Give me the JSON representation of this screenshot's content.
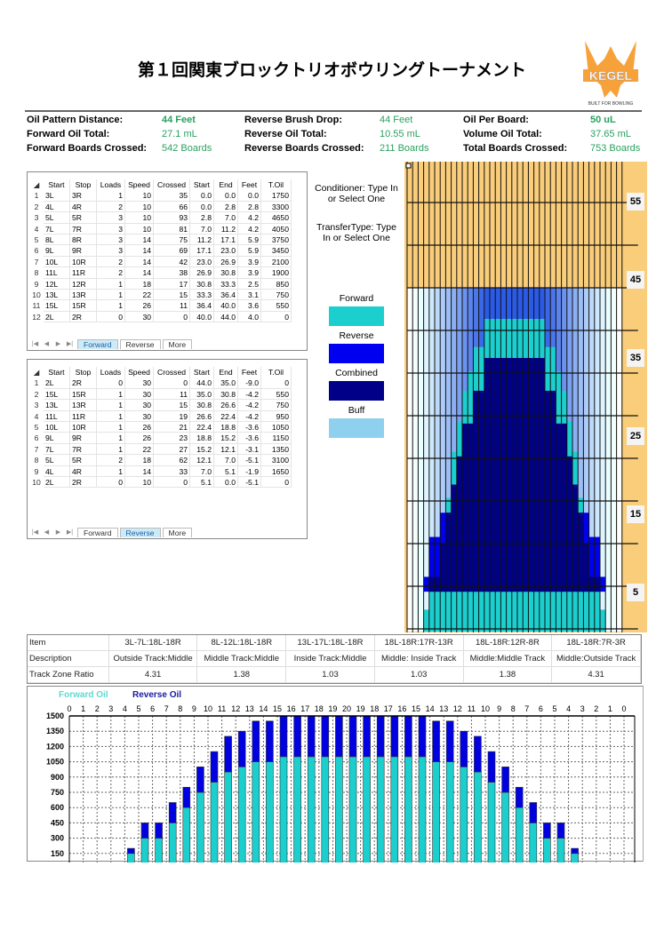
{
  "title": "第１回関東ブロックトリオボウリングトーナメント",
  "logo": {
    "brand": "KEGEL",
    "tagline": "BUILT FOR BOWLING",
    "color": "#f7a13a"
  },
  "summary": [
    {
      "label": "Oil Pattern Distance:",
      "value": "44 Feet",
      "bold": true
    },
    {
      "label": "Forward Oil Total:",
      "value": "27.1 mL"
    },
    {
      "label": "Forward Boards Crossed:",
      "value": "542 Boards"
    },
    {
      "label": "Reverse Brush Drop:",
      "value": "44 Feet"
    },
    {
      "label": "Reverse Oil Total:",
      "value": "10.55 mL"
    },
    {
      "label": "Reverse Boards Crossed:",
      "value": "211 Boards"
    },
    {
      "label": "Oil Per Board:",
      "value": "50 uL",
      "bold": true
    },
    {
      "label": "Volume Oil Total:",
      "value": "37.65 mL"
    },
    {
      "label": "Total Boards Crossed:",
      "value": "753 Boards"
    }
  ],
  "columns": [
    "Start",
    "Stop",
    "Loads",
    "Speed",
    "Crossed",
    "Start",
    "End",
    "Feet",
    "T.Oil"
  ],
  "sheet_tabs": [
    "Forward",
    "Reverse",
    "More"
  ],
  "forward": [
    [
      "3L",
      "3R",
      "1",
      "10",
      "35",
      "0.0",
      "0.0",
      "0.0",
      "1750"
    ],
    [
      "4L",
      "4R",
      "2",
      "10",
      "66",
      "0.0",
      "2.8",
      "2.8",
      "3300"
    ],
    [
      "5L",
      "5R",
      "3",
      "10",
      "93",
      "2.8",
      "7.0",
      "4.2",
      "4650"
    ],
    [
      "7L",
      "7R",
      "3",
      "10",
      "81",
      "7.0",
      "11.2",
      "4.2",
      "4050"
    ],
    [
      "8L",
      "8R",
      "3",
      "14",
      "75",
      "11.2",
      "17.1",
      "5.9",
      "3750"
    ],
    [
      "9L",
      "9R",
      "3",
      "14",
      "69",
      "17.1",
      "23.0",
      "5.9",
      "3450"
    ],
    [
      "10L",
      "10R",
      "2",
      "14",
      "42",
      "23.0",
      "26.9",
      "3.9",
      "2100"
    ],
    [
      "11L",
      "11R",
      "2",
      "14",
      "38",
      "26.9",
      "30.8",
      "3.9",
      "1900"
    ],
    [
      "12L",
      "12R",
      "1",
      "18",
      "17",
      "30.8",
      "33.3",
      "2.5",
      "850"
    ],
    [
      "13L",
      "13R",
      "1",
      "22",
      "15",
      "33.3",
      "36.4",
      "3.1",
      "750"
    ],
    [
      "15L",
      "15R",
      "1",
      "26",
      "11",
      "36.4",
      "40.0",
      "3.6",
      "550"
    ],
    [
      "2L",
      "2R",
      "0",
      "30",
      "0",
      "40.0",
      "44.0",
      "4.0",
      "0"
    ]
  ],
  "reverse": [
    [
      "2L",
      "2R",
      "0",
      "30",
      "0",
      "44.0",
      "35.0",
      "-9.0",
      "0"
    ],
    [
      "15L",
      "15R",
      "1",
      "30",
      "11",
      "35.0",
      "30.8",
      "-4.2",
      "550"
    ],
    [
      "13L",
      "13R",
      "1",
      "30",
      "15",
      "30.8",
      "26.6",
      "-4.2",
      "750"
    ],
    [
      "11L",
      "11R",
      "1",
      "30",
      "19",
      "26.6",
      "22.4",
      "-4.2",
      "950"
    ],
    [
      "10L",
      "10R",
      "1",
      "26",
      "21",
      "22.4",
      "18.8",
      "-3.6",
      "1050"
    ],
    [
      "9L",
      "9R",
      "1",
      "26",
      "23",
      "18.8",
      "15.2",
      "-3.6",
      "1150"
    ],
    [
      "7L",
      "7R",
      "1",
      "22",
      "27",
      "15.2",
      "12.1",
      "-3.1",
      "1350"
    ],
    [
      "5L",
      "5R",
      "2",
      "18",
      "62",
      "12.1",
      "7.0",
      "-5.1",
      "3100"
    ],
    [
      "4L",
      "4R",
      "1",
      "14",
      "33",
      "7.0",
      "5.1",
      "-1.9",
      "1650"
    ],
    [
      "2L",
      "2R",
      "0",
      "10",
      "0",
      "5.1",
      "0.0",
      "-5.1",
      "0"
    ]
  ],
  "middle": {
    "conditioner": "Conditioner: Type In or Select One",
    "transfer": "TransferType: Type In or Select One",
    "legend": [
      {
        "label": "Forward",
        "color": "#1ccfcf"
      },
      {
        "label": "Reverse",
        "color": "#0000f0"
      },
      {
        "label": "Combined",
        "color": "#000088"
      },
      {
        "label": "Buff",
        "color": "#8fd0ee"
      }
    ]
  },
  "lane_graph": {
    "feet_labels": [
      "55",
      "45",
      "35",
      "25",
      "15",
      "5"
    ],
    "boards": 39,
    "oil_distance_ft": 44,
    "lane_color": "#f9cd7a"
  },
  "zones": {
    "headers": [
      "Item",
      "Description",
      "Track Zone Ratio"
    ],
    "items": [
      "3L-7L:18L-18R",
      "8L-12L:18L-18R",
      "13L-17L:18L-18R",
      "18L-18R:17R-13R",
      "18L-18R:12R-8R",
      "18L-18R:7R-3R"
    ],
    "descriptions": [
      "Outside Track:Middle",
      "Middle Track:Middle",
      "Inside Track:Middle",
      "Middle: Inside Track",
      "Middle:Middle Track",
      "Middle:Outside Track"
    ],
    "ratios": [
      "4.31",
      "1.38",
      "1.03",
      "1.03",
      "1.38",
      "4.31"
    ]
  },
  "chart_data": {
    "type": "bar",
    "stacked": true,
    "categories": [
      "0",
      "1",
      "2",
      "3",
      "4",
      "5",
      "6",
      "7",
      "8",
      "9",
      "10",
      "11",
      "12",
      "13",
      "14",
      "15",
      "16",
      "17",
      "18",
      "19",
      "20",
      "19",
      "18",
      "17",
      "16",
      "15",
      "14",
      "13",
      "12",
      "11",
      "10",
      "9",
      "8",
      "7",
      "6",
      "5",
      "4",
      "3",
      "2",
      "1",
      "0"
    ],
    "series": [
      {
        "name": "Forward Oil",
        "color": "#1ccfcf",
        "values": [
          0,
          0,
          0,
          0,
          150,
          300,
          300,
          450,
          600,
          750,
          850,
          950,
          1000,
          1050,
          1050,
          1100,
          1100,
          1100,
          1100,
          1100,
          1100,
          1100,
          1100,
          1100,
          1100,
          1100,
          1050,
          1050,
          1000,
          950,
          850,
          750,
          600,
          450,
          300,
          300,
          150,
          0,
          0,
          0,
          0
        ]
      },
      {
        "name": "Reverse Oil",
        "color": "#0000e0",
        "values": [
          0,
          0,
          0,
          0,
          50,
          150,
          150,
          200,
          200,
          250,
          300,
          350,
          350,
          400,
          400,
          400,
          400,
          400,
          400,
          400,
          400,
          400,
          400,
          400,
          400,
          400,
          400,
          400,
          350,
          350,
          300,
          250,
          200,
          200,
          150,
          150,
          50,
          0,
          0,
          0,
          0
        ]
      }
    ],
    "yticks": [
      "1500",
      "1350",
      "1200",
      "1050",
      "900",
      "750",
      "600",
      "450",
      "300",
      "150"
    ],
    "ylim": [
      0,
      1500
    ],
    "grid": true,
    "legend": "top-left"
  }
}
